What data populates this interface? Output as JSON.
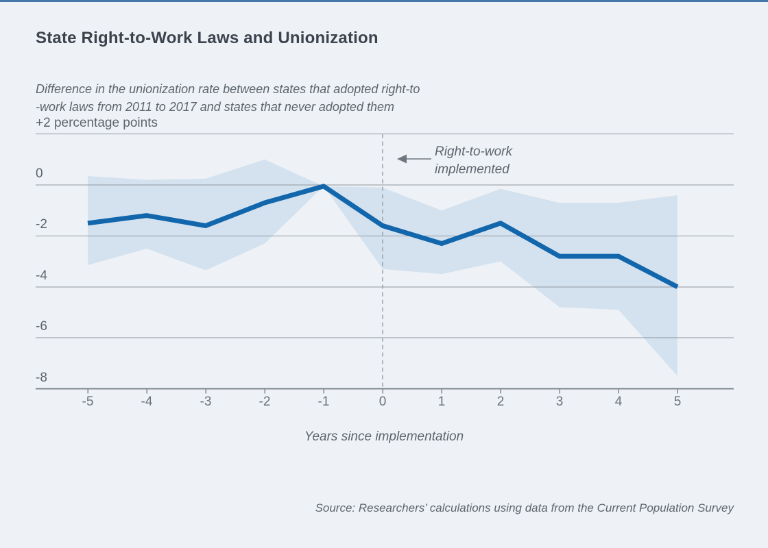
{
  "header": {
    "title": "State Right-to-Work Laws and Unionization",
    "subtitle_line1": "Difference in the unionization rate between states that adopted right-to",
    "subtitle_line2": "-work laws from 2011 to 2017 and states that never adopted them"
  },
  "annotation": {
    "line1": "Right-to-work",
    "line2": "implemented"
  },
  "source": "Source: Researchers’ calculations using data from the Current Population Survey",
  "colors": {
    "background": "#eef2f6",
    "accent_top_bar": "#4878aa",
    "line": "#1266ab",
    "band": "#d4e2ef",
    "grid": "#8f979e",
    "axis": "#7e878e",
    "dashed": "#9aa3ab",
    "arrow": "#6f767d",
    "title_text": "#3c434d",
    "muted_text": "#5d646d",
    "tick_text": "#6b737c"
  },
  "chart_data": {
    "type": "line",
    "title": "State Right-to-Work Laws and Unionization",
    "subtitle": "Difference in the unionization rate between states that adopted right-to-work laws from 2011 to 2017 and states that never adopted them",
    "xlabel": "Years since implementation",
    "ylabel": "+2 percentage points",
    "xlim": [
      -5,
      5
    ],
    "ylim": [
      -8,
      2
    ],
    "grid": true,
    "legend": "none",
    "event_x": 0,
    "x": [
      -5,
      -4,
      -3,
      -2,
      -1,
      0,
      1,
      2,
      3,
      4,
      5
    ],
    "x_ticks": [
      "-5",
      "-4",
      "-3",
      "-2",
      "-1",
      "0",
      "1",
      "2",
      "3",
      "4",
      "5"
    ],
    "y_ticks": [
      {
        "value": 2,
        "label": "+2 percentage points"
      },
      {
        "value": 0,
        "label": "0"
      },
      {
        "value": -2,
        "label": "-2"
      },
      {
        "value": -4,
        "label": "-4"
      },
      {
        "value": -6,
        "label": "-6"
      },
      {
        "value": -8,
        "label": "-8"
      }
    ],
    "series": [
      {
        "name": "Difference in unionization rate (percentage points)",
        "values": [
          -1.5,
          -1.2,
          -1.6,
          -0.7,
          -0.05,
          -1.6,
          -2.3,
          -1.5,
          -2.8,
          -2.8,
          -4.0
        ]
      },
      {
        "name": "Confidence band upper",
        "values": [
          0.35,
          0.2,
          0.25,
          1.0,
          -0.05,
          -0.1,
          -1.0,
          -0.15,
          -0.7,
          -0.7,
          -0.4
        ]
      },
      {
        "name": "Confidence band lower",
        "values": [
          -3.15,
          -2.5,
          -3.35,
          -2.3,
          -0.05,
          -3.3,
          -3.5,
          -3.0,
          -4.8,
          -4.9,
          -7.5
        ]
      }
    ]
  }
}
